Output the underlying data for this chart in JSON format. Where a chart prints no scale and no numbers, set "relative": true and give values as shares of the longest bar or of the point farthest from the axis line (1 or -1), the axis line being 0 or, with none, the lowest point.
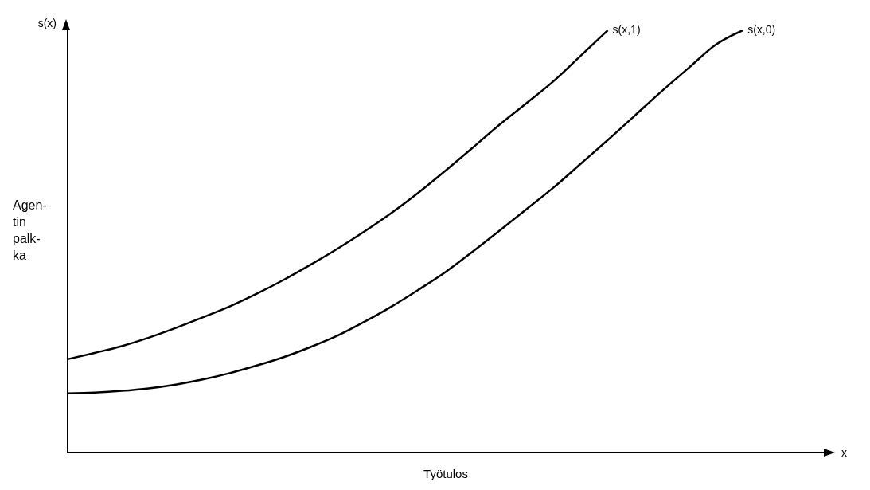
{
  "chart_data": {
    "type": "line",
    "relative": true,
    "xlabel": "Työtulos",
    "ylabel": "Agen-\ntin\npalk-\nka",
    "annotations": [
      "s(x)",
      "x"
    ],
    "legend": false,
    "grid": false,
    "marker": "none",
    "line_style": "solid",
    "categories": [
      null,
      null,
      null,
      null,
      null,
      null,
      null,
      null,
      null,
      null,
      null,
      null,
      null,
      null,
      null,
      null,
      null,
      null,
      null,
      null,
      null,
      null,
      null,
      null,
      null,
      null,
      null,
      null,
      null
    ],
    "series": [
      {
        "name": "s(x,1)",
        "color": "#000000",
        "values": [
          0.221,
          0.236,
          0.252,
          0.272,
          0.295,
          0.32,
          0.346,
          0.376,
          0.409,
          0.445,
          0.483,
          0.524,
          0.568,
          0.616,
          0.668,
          0.722,
          0.777,
          0.828,
          0.88,
          0.94,
          1.0,
          null,
          null,
          null,
          null,
          null,
          null,
          null,
          null
        ]
      },
      {
        "name": "s(x,0)",
        "color": "#000000",
        "values": [
          0.14,
          0.142,
          0.146,
          0.152,
          0.161,
          0.173,
          0.188,
          0.206,
          0.226,
          0.25,
          0.277,
          0.31,
          0.346,
          0.386,
          0.428,
          0.476,
          0.526,
          0.577,
          0.628,
          0.684,
          0.74,
          0.798,
          0.856,
          0.911,
          0.966,
          1.0,
          null,
          null,
          null
        ]
      }
    ]
  }
}
